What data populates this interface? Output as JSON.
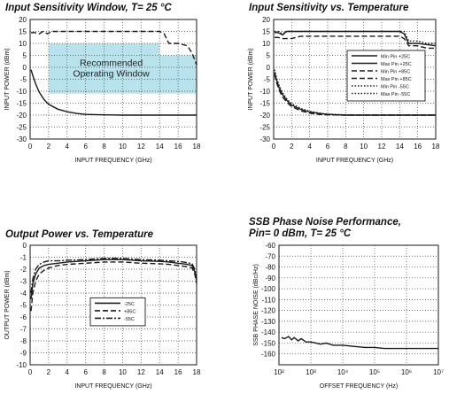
{
  "page": {
    "background": "#ffffff",
    "plot_background": "#ffffff",
    "line_color": "#1a1a1a",
    "window_color": "#b9e3ec"
  },
  "chart_data": [
    {
      "id": "sens-window",
      "type": "line",
      "title_lines": [
        "Input Sensitivity Window, T= 25 °C"
      ],
      "xlabel": "INPUT FREQUENCY (GHz)",
      "ylabel": "INPUT POWER (dBm)",
      "xlim": [
        0,
        18
      ],
      "ylim": [
        -30,
        20
      ],
      "xticks": [
        0,
        2,
        4,
        6,
        8,
        10,
        12,
        14,
        16,
        18
      ],
      "yticks": [
        -30,
        -25,
        -20,
        -15,
        -10,
        -5,
        0,
        5,
        10,
        15,
        20
      ],
      "xtick_labels": [
        "0",
        "2",
        "4",
        "6",
        "8",
        "10",
        "12",
        "14",
        "16",
        "18"
      ],
      "ytick_labels": [
        "-30",
        "-25",
        "-20",
        "-15",
        "-10",
        "-5",
        "0",
        "5",
        "10",
        "15",
        "20"
      ],
      "grid": true,
      "grid_style": "dotted",
      "window": {
        "label_lines": [
          "Recommended",
          "Operating Window"
        ],
        "color": "#b9e3ec",
        "x": [
          2,
          18
        ],
        "y": [
          -11,
          10
        ],
        "cutout": {
          "x": [
            14,
            18
          ],
          "y": [
            5,
            10
          ]
        }
      },
      "series": [
        {
          "style": "solid",
          "x": [
            0.1,
            0.3,
            0.6,
            1,
            1.5,
            2,
            3,
            4,
            5,
            6,
            8,
            10,
            12,
            14,
            16,
            17,
            18
          ],
          "y": [
            -1,
            -3.5,
            -7,
            -10.5,
            -13.5,
            -15.5,
            -17.5,
            -18.6,
            -19.3,
            -19.7,
            -19.9,
            -20,
            -20,
            -20,
            -20,
            -20,
            -20
          ]
        },
        {
          "style": "dashed",
          "x": [
            0.1,
            0.5,
            1,
            1.4,
            1.9,
            2.3,
            3,
            4,
            5,
            6,
            8,
            10,
            12,
            14,
            14.5,
            15,
            16,
            16.5,
            17,
            17.5,
            18
          ],
          "y": [
            14.5,
            14.5,
            14,
            15,
            14,
            15,
            15,
            15,
            15,
            15,
            15,
            15,
            15,
            15,
            14,
            10,
            10,
            9.5,
            9,
            6,
            1
          ]
        }
      ]
    },
    {
      "id": "sens-temp",
      "type": "line",
      "title_lines": [
        "Input Sensitivity vs. Temperature"
      ],
      "xlabel": "INPUT FREQUENCY (GHz)",
      "ylabel": "INPUT POWER (dBm)",
      "xlim": [
        0,
        18
      ],
      "ylim": [
        -30,
        20
      ],
      "xticks": [
        0,
        2,
        4,
        6,
        8,
        10,
        12,
        14,
        16,
        18
      ],
      "yticks": [
        -30,
        -25,
        -20,
        -15,
        -10,
        -5,
        0,
        5,
        10,
        15,
        20
      ],
      "xtick_labels": [
        "0",
        "2",
        "4",
        "6",
        "8",
        "10",
        "12",
        "14",
        "16",
        "18"
      ],
      "ytick_labels": [
        "-30",
        "-25",
        "-20",
        "-15",
        "-10",
        "-5",
        "0",
        "5",
        "10",
        "15",
        "20"
      ],
      "grid": true,
      "grid_style": "dotted",
      "legend": {
        "placement": "center-right",
        "entries": [
          "Min Pin  +25C",
          "Max Pin  +25C",
          "Min Pin  +85C",
          "Max Pin  +85C",
          "Min Pin  -55C",
          "Max Pin  -55C"
        ],
        "styles": [
          "solid",
          "solid",
          "dashed",
          "dashed",
          "dotted",
          "dotted"
        ]
      },
      "series": [
        {
          "name": "Min Pin  +25C",
          "style": "solid",
          "x": [
            0.1,
            0.3,
            0.6,
            1,
            1.5,
            2,
            3,
            4,
            5,
            6,
            8,
            10,
            12,
            14,
            16,
            18
          ],
          "y": [
            -2,
            -5,
            -8.5,
            -11.5,
            -14,
            -15.8,
            -17.6,
            -18.7,
            -19.3,
            -19.7,
            -20,
            -20,
            -20,
            -20,
            -20,
            -20
          ]
        },
        {
          "name": "Max Pin  +25C",
          "style": "solid",
          "x": [
            0.1,
            0.5,
            1,
            1.4,
            1.9,
            2.3,
            3,
            4,
            6,
            8,
            10,
            12,
            14,
            14.5,
            15,
            16,
            17,
            18
          ],
          "y": [
            14.5,
            14.5,
            13.5,
            15,
            15,
            15,
            15,
            15,
            15,
            15,
            15,
            15,
            15,
            14,
            10,
            10,
            9.5,
            9
          ]
        },
        {
          "name": "Min Pin  +85C",
          "style": "dashed",
          "x": [
            0.1,
            0.3,
            0.6,
            1,
            1.5,
            2,
            3,
            4,
            5,
            6,
            8,
            10,
            12,
            14,
            16,
            18
          ],
          "y": [
            -3,
            -6,
            -9.5,
            -12.5,
            -14.8,
            -16.5,
            -18.2,
            -19.2,
            -19.7,
            -19.9,
            -20,
            -20,
            -20,
            -20,
            -20,
            -20
          ]
        },
        {
          "name": "Max Pin  +85C",
          "style": "dashed",
          "x": [
            0.1,
            0.5,
            1,
            1.5,
            2,
            3,
            4,
            6,
            8,
            10,
            12,
            14,
            14.5,
            15,
            16,
            17,
            18
          ],
          "y": [
            12.5,
            12.5,
            12,
            12,
            12,
            13,
            13,
            13,
            13,
            13,
            13,
            13,
            12,
            9,
            9,
            8,
            8
          ]
        },
        {
          "name": "Min Pin  -55C",
          "style": "dotted",
          "x": [
            0.1,
            0.3,
            0.6,
            1,
            1.5,
            2,
            3,
            4,
            5,
            6,
            8,
            10,
            12,
            14,
            16,
            18
          ],
          "y": [
            -1,
            -4,
            -7.5,
            -10.8,
            -13.5,
            -15.2,
            -17.2,
            -18.4,
            -19.1,
            -19.6,
            -19.9,
            -20,
            -20,
            -20,
            -20,
            -20
          ]
        },
        {
          "name": "Max Pin  -55C",
          "style": "dotted",
          "x": [
            0.1,
            0.5,
            1,
            1.5,
            2,
            3,
            4,
            6,
            8,
            10,
            12,
            14,
            14.5,
            15,
            16,
            17,
            18
          ],
          "y": [
            15,
            15,
            14,
            15,
            15,
            15,
            15,
            15,
            15,
            15,
            15,
            15,
            15,
            11,
            11,
            10,
            10
          ]
        }
      ]
    },
    {
      "id": "pout-temp",
      "type": "line",
      "title_lines": [
        "Output Power vs. Temperature"
      ],
      "xlabel": "INPUT FREQUENCY (GHz)",
      "ylabel": "OUTPUT POWER (dBm)",
      "xlim": [
        0,
        18
      ],
      "ylim": [
        -10,
        0
      ],
      "xticks": [
        0,
        2,
        4,
        6,
        8,
        10,
        12,
        14,
        16,
        18
      ],
      "yticks": [
        -10,
        -9,
        -8,
        -7,
        -6,
        -5,
        -4,
        -3,
        -2,
        -1,
        0
      ],
      "xtick_labels": [
        "0",
        "2",
        "4",
        "6",
        "8",
        "10",
        "12",
        "14",
        "16",
        "18"
      ],
      "ytick_labels": [
        "-10",
        "-9",
        "-8",
        "-7",
        "-6",
        "-5",
        "-4",
        "-3",
        "-2",
        "-1",
        "0"
      ],
      "grid": true,
      "grid_style": "dotted",
      "legend": {
        "placement": "center-right",
        "entries": [
          "-25C",
          "+85C",
          "-55C"
        ],
        "styles": [
          "solid",
          "dashed",
          "dashdot"
        ]
      },
      "series": [
        {
          "name": "-25C",
          "style": "solid",
          "x": [
            0.1,
            0.3,
            0.6,
            1,
            1.5,
            2,
            3,
            4,
            6,
            8,
            10,
            12,
            14,
            15,
            16,
            17,
            17.5,
            17.8,
            18
          ],
          "y": [
            -4.5,
            -3.2,
            -2.4,
            -1.9,
            -1.7,
            -1.6,
            -1.5,
            -1.4,
            -1.3,
            -1.2,
            -1.2,
            -1.3,
            -1.35,
            -1.4,
            -1.5,
            -1.6,
            -1.7,
            -2.2,
            -3
          ]
        },
        {
          "name": "+85C",
          "style": "dashed",
          "x": [
            0.1,
            0.3,
            0.6,
            1,
            1.5,
            2,
            3,
            4,
            6,
            8,
            10,
            12,
            14,
            15,
            16,
            17,
            17.5,
            17.8,
            18
          ],
          "y": [
            -5.5,
            -4,
            -3,
            -2.4,
            -2.1,
            -1.9,
            -1.7,
            -1.6,
            -1.5,
            -1.4,
            -1.4,
            -1.5,
            -1.55,
            -1.6,
            -1.7,
            -1.8,
            -1.9,
            -2.4,
            -3.2
          ]
        },
        {
          "name": "-55C",
          "style": "dashdot",
          "x": [
            0.1,
            0.3,
            0.6,
            1,
            1.5,
            2,
            3,
            4,
            6,
            8,
            10,
            12,
            14,
            15,
            16,
            17,
            17.5,
            17.8,
            18
          ],
          "y": [
            -4,
            -2.8,
            -2,
            -1.6,
            -1.4,
            -1.3,
            -1.3,
            -1.25,
            -1.2,
            -1.1,
            -1.1,
            -1.2,
            -1.25,
            -1.3,
            -1.35,
            -1.45,
            -1.55,
            -2,
            -2.8
          ]
        }
      ]
    },
    {
      "id": "phase-noise",
      "type": "line",
      "title_lines": [
        "SSB Phase Noise Performance,",
        "Pin= 0 dBm, T= 25 °C"
      ],
      "xlabel": "OFFSET FREQUENCY (Hz)",
      "ylabel": "SSB PHASE NOISE (dBc/Hz)",
      "xscale": "log",
      "xlim": [
        100,
        10000000
      ],
      "ylim": [
        -170,
        -60
      ],
      "xticks": [
        100,
        1000,
        10000,
        100000,
        1000000,
        10000000
      ],
      "yticks": [
        -170,
        -160,
        -150,
        -140,
        -130,
        -120,
        -110,
        -100,
        -90,
        -80,
        -70,
        -60
      ],
      "xtick_labels": [
        "10²",
        "10³",
        "10⁴",
        "10⁵",
        "10⁶",
        "10⁷"
      ],
      "ytick_labels": [
        "",
        "-160",
        "-150",
        "-140",
        "-130",
        "-120",
        "-110",
        "-100",
        "-90",
        "-80",
        "-70",
        "-60"
      ],
      "grid": true,
      "grid_style": "dotted",
      "series": [
        {
          "style": "solid",
          "x": [
            120,
            150,
            200,
            250,
            300,
            400,
            500,
            700,
            1000,
            2000,
            3000,
            5000,
            10000,
            20000,
            50000,
            100000,
            200000,
            500000,
            1000000,
            2000000,
            5000000,
            10000000
          ],
          "y": [
            -145,
            -146,
            -144,
            -147,
            -145,
            -148,
            -146,
            -149,
            -149,
            -151,
            -150,
            -152,
            -152,
            -153,
            -154,
            -154,
            -155,
            -155,
            -155,
            -155,
            -155,
            -155
          ]
        }
      ]
    }
  ]
}
